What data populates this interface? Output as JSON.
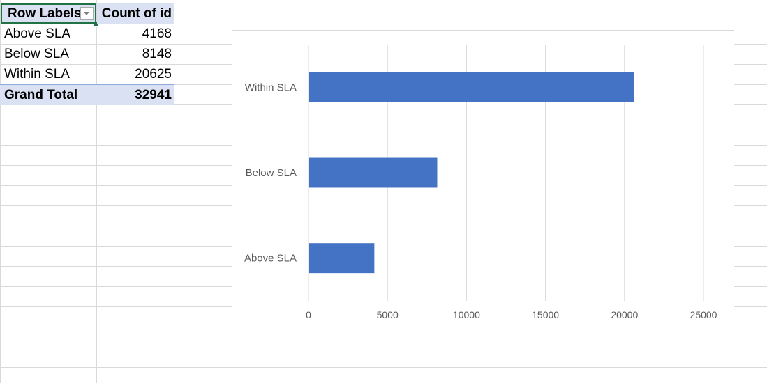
{
  "pivot": {
    "header": {
      "row_labels": "Row Labels",
      "count_label": "Count of id"
    },
    "rows": [
      {
        "label": "Above SLA",
        "count": "4168"
      },
      {
        "label": "Below SLA",
        "count": "8148"
      },
      {
        "label": "Within SLA",
        "count": "20625"
      }
    ],
    "total": {
      "label": "Grand Total",
      "count": "32941"
    }
  },
  "chart_data": {
    "type": "bar",
    "orientation": "horizontal",
    "categories": [
      "Above SLA",
      "Below SLA",
      "Within SLA"
    ],
    "values": [
      4168,
      8148,
      20625
    ],
    "xlim": [
      0,
      25000
    ],
    "xticks": [
      0,
      5000,
      10000,
      15000,
      20000,
      25000
    ],
    "title": "",
    "xlabel": "",
    "ylabel": "",
    "grid": "vertical",
    "bar_color": "#4472c4",
    "gridline_color": "#d9d9d9"
  }
}
